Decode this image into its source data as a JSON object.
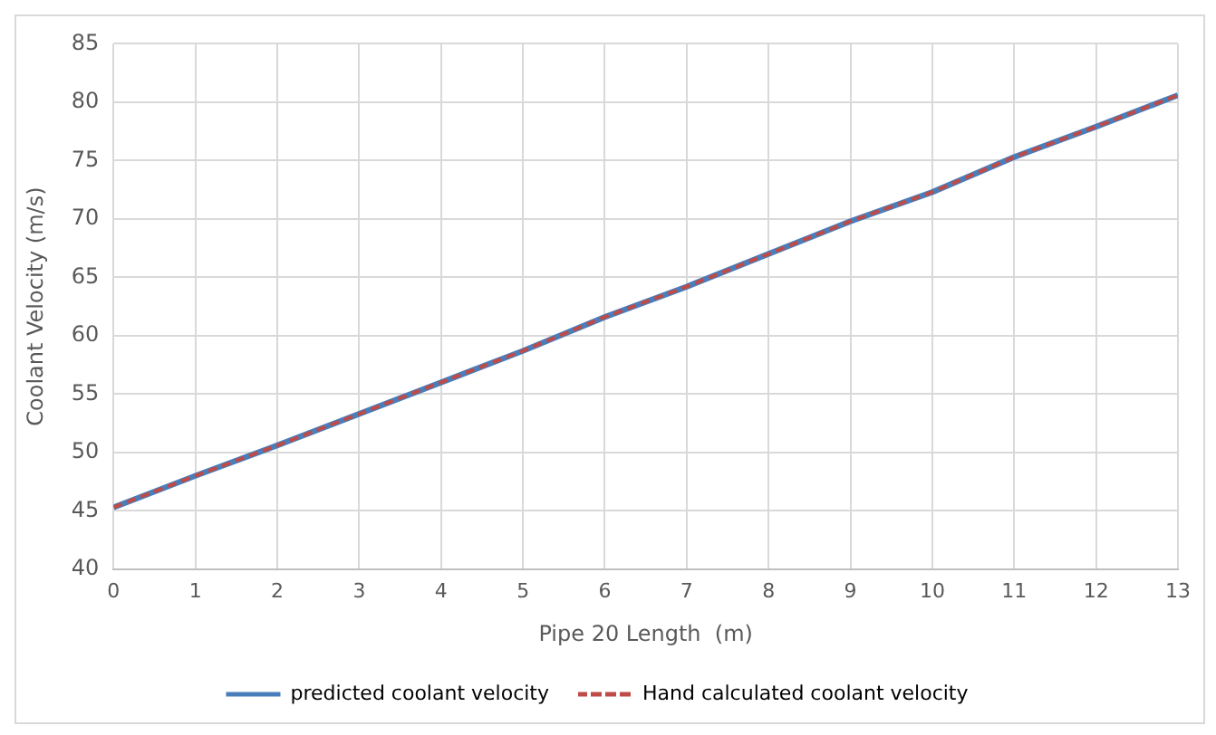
{
  "chart_data": {
    "type": "line",
    "xlabel": "Pipe 20 Length  (m)",
    "ylabel": "Coolant Velocity (m/s)",
    "x": [
      0,
      1,
      2,
      3,
      4,
      5,
      6,
      7,
      8,
      9,
      10,
      11,
      12,
      13
    ],
    "series": [
      {
        "name": "predicted coolant velocity",
        "color": "#4a7ebb",
        "line_style": "solid",
        "values": [
          45.3,
          48.0,
          50.6,
          53.3,
          56.0,
          58.7,
          61.6,
          64.2,
          67.0,
          69.8,
          72.3,
          75.3,
          77.9,
          80.6
        ]
      },
      {
        "name": "Hand calculated coolant velocity",
        "color": "#be4b48",
        "line_style": "dashed",
        "values": [
          45.3,
          48.0,
          50.6,
          53.3,
          56.0,
          58.7,
          61.6,
          64.2,
          67.0,
          69.8,
          72.3,
          75.3,
          77.9,
          80.6
        ]
      }
    ],
    "xlim": [
      0,
      13
    ],
    "xticks": [
      0,
      1,
      2,
      3,
      4,
      5,
      6,
      7,
      8,
      9,
      10,
      11,
      12,
      13
    ],
    "ylim": [
      40,
      85
    ],
    "yticks": [
      40,
      45,
      50,
      55,
      60,
      65,
      70,
      75,
      80,
      85
    ],
    "grid": true,
    "legend": "bottom",
    "marker": "none"
  }
}
